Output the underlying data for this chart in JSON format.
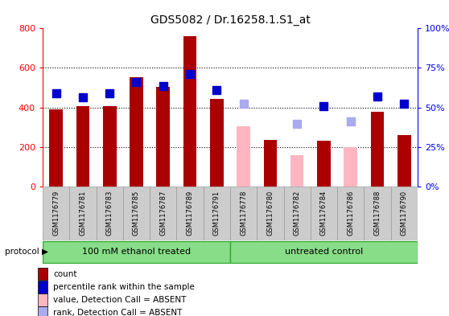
{
  "title": "GDS5082 / Dr.16258.1.S1_at",
  "samples": [
    "GSM1176779",
    "GSM1176781",
    "GSM1176783",
    "GSM1176785",
    "GSM1176787",
    "GSM1176789",
    "GSM1176791",
    "GSM1176778",
    "GSM1176780",
    "GSM1176782",
    "GSM1176784",
    "GSM1176786",
    "GSM1176788",
    "GSM1176790"
  ],
  "count_present": [
    390,
    405,
    405,
    555,
    505,
    760,
    445,
    null,
    235,
    null,
    230,
    null,
    380,
    258
  ],
  "count_absent": [
    null,
    null,
    null,
    null,
    null,
    null,
    null,
    305,
    null,
    160,
    null,
    200,
    null,
    null
  ],
  "rank_present": [
    58.75,
    56.63,
    58.75,
    66.25,
    63.5,
    71.25,
    60.88,
    null,
    null,
    null,
    51.0,
    null,
    56.88,
    52.5
  ],
  "rank_absent": [
    null,
    null,
    null,
    null,
    null,
    null,
    null,
    52.5,
    null,
    39.38,
    null,
    41.25,
    null,
    null
  ],
  "groups": [
    "100 mM ethanol treated",
    "100 mM ethanol treated",
    "100 mM ethanol treated",
    "100 mM ethanol treated",
    "100 mM ethanol treated",
    "100 mM ethanol treated",
    "100 mM ethanol treated",
    "untreated control",
    "untreated control",
    "untreated control",
    "untreated control",
    "untreated control",
    "untreated control",
    "untreated control"
  ],
  "group_labels": [
    "100 mM ethanol treated",
    "untreated control"
  ],
  "bar_color_present": "#AA0000",
  "bar_color_absent": "#FFB6C1",
  "rank_color_present": "#0000CC",
  "rank_color_absent": "#AAAAEE",
  "ylim_left": [
    0,
    800
  ],
  "ylim_right": [
    0,
    100
  ],
  "yticks_left": [
    0,
    200,
    400,
    600,
    800
  ],
  "ytick_labels_left": [
    "0",
    "200",
    "400",
    "600",
    "800"
  ],
  "yticks_right": [
    0,
    25,
    50,
    75,
    100
  ],
  "ytick_labels_right": [
    "0%",
    "25%",
    "50%",
    "75%",
    "100%"
  ],
  "bar_width": 0.5,
  "rank_marker_size": 7,
  "group_boundary": 7,
  "legend_items": [
    {
      "color": "#AA0000",
      "label": "count"
    },
    {
      "color": "#0000CC",
      "label": "percentile rank within the sample"
    },
    {
      "color": "#FFB6C1",
      "label": "value, Detection Call = ABSENT"
    },
    {
      "color": "#AAAAEE",
      "label": "rank, Detection Call = ABSENT"
    }
  ]
}
